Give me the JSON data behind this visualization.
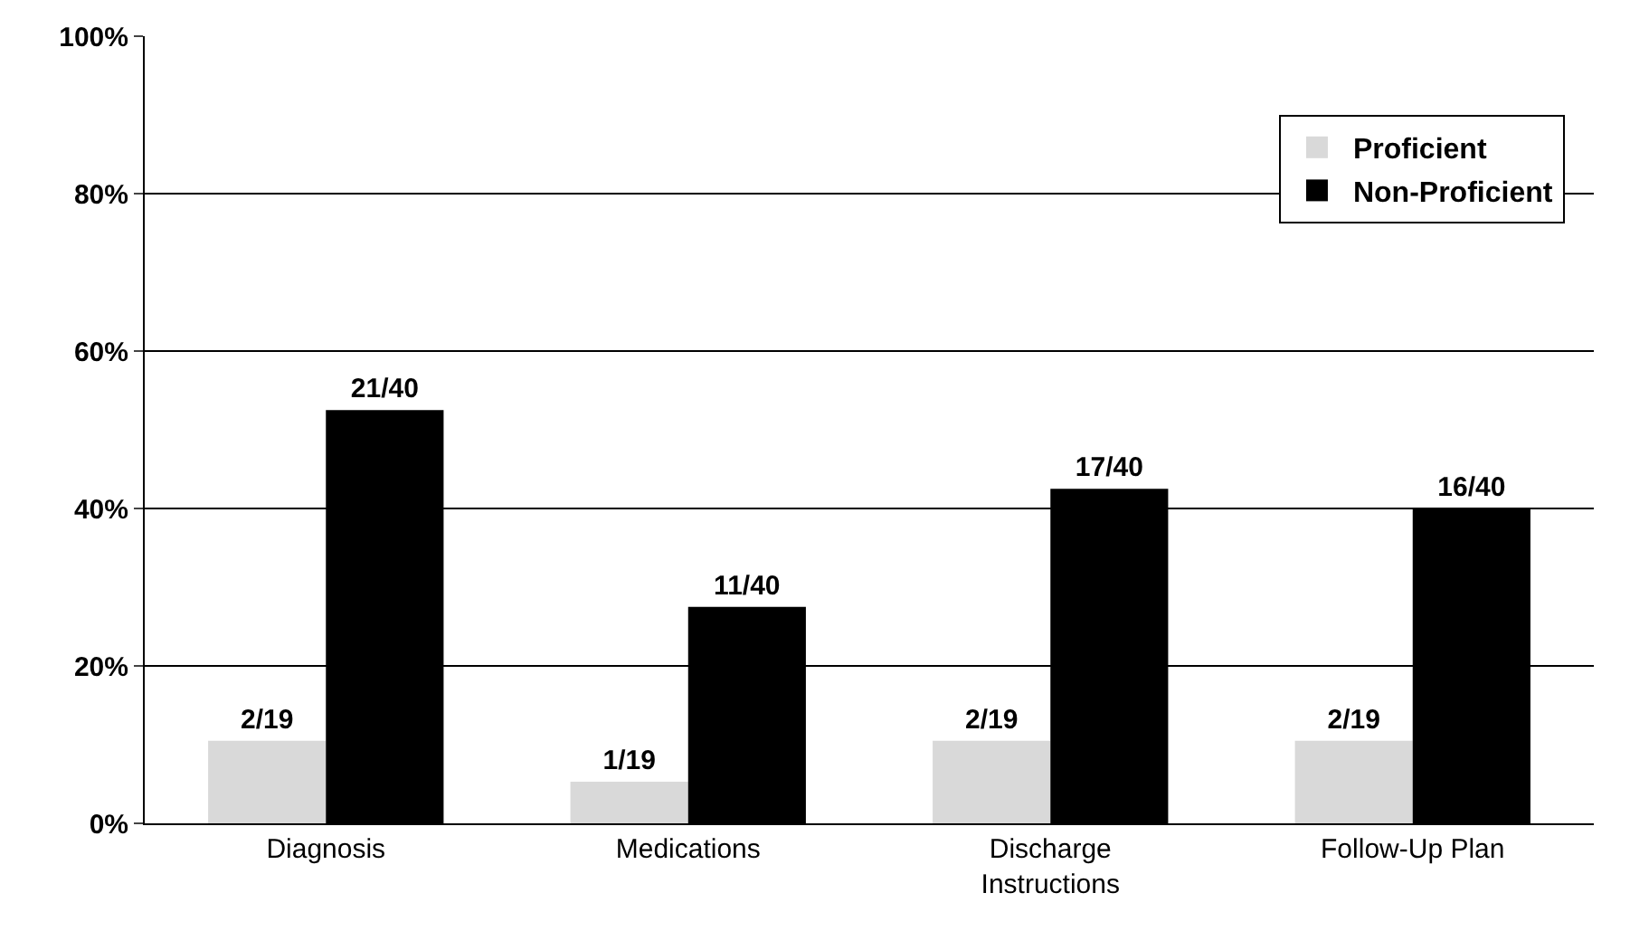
{
  "chart_data": {
    "type": "bar",
    "categories": [
      "Diagnosis",
      "Medications",
      "Discharge Instructions",
      "Follow-Up Plan"
    ],
    "series": [
      {
        "name": "Proficient",
        "color": "#d9d9d9",
        "values": [
          10.5,
          5.3,
          10.5,
          10.5
        ],
        "value_labels": [
          "2/19",
          "1/19",
          "2/19",
          "2/19"
        ]
      },
      {
        "name": "Non-Proficient",
        "color": "#000000",
        "values": [
          52.5,
          27.5,
          42.5,
          40
        ],
        "value_labels": [
          "21/40",
          "11/40",
          "17/40",
          "16/40"
        ]
      }
    ],
    "ylim": [
      0,
      100
    ],
    "yticks": [
      {
        "value": 0,
        "label": "0%"
      },
      {
        "value": 20,
        "label": "20%"
      },
      {
        "value": 40,
        "label": "40%"
      },
      {
        "value": 60,
        "label": "60%"
      },
      {
        "value": 80,
        "label": "80%"
      },
      {
        "value": 100,
        "label": "100%"
      }
    ],
    "grid": "y",
    "legend": "top right"
  }
}
